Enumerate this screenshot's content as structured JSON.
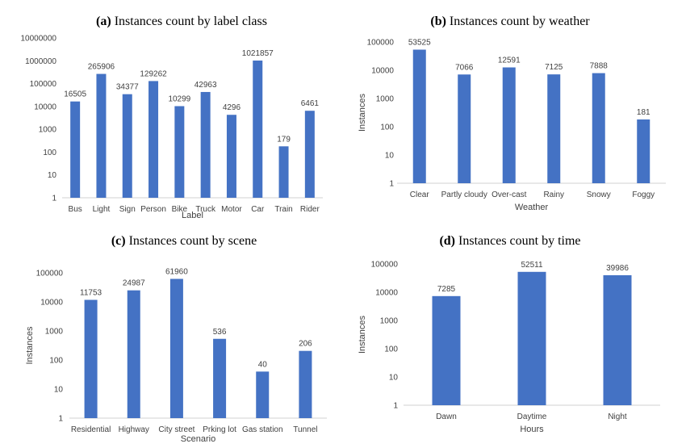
{
  "chart_data": [
    {
      "type": "bar",
      "panel": "(a)",
      "title": "Instances count by label class",
      "xlabel": "Label",
      "ylabel": "",
      "yscale": "log",
      "ylim": [
        1,
        10000000
      ],
      "yticks": [
        "1",
        "10",
        "100",
        "1000",
        "10000",
        "100000",
        "1000000",
        "10000000"
      ],
      "categories": [
        "Bus",
        "Light",
        "Sign",
        "Person",
        "Bike",
        "Truck",
        "Motor",
        "Car",
        "Train",
        "Rider"
      ],
      "values": [
        16505,
        265906,
        34377,
        129262,
        10299,
        42963,
        4296,
        1021857,
        179,
        6461
      ],
      "data_labels": [
        "16505",
        "265906",
        "34377",
        "129262",
        "10299",
        "42963",
        "4296",
        "1021857",
        "179",
        "6461"
      ]
    },
    {
      "type": "bar",
      "panel": "(b)",
      "title": "Instances count by weather",
      "xlabel": "Weather",
      "ylabel": "Instances",
      "yscale": "log",
      "ylim": [
        1,
        100000
      ],
      "yticks": [
        "1",
        "10",
        "100",
        "1000",
        "10000",
        "100000"
      ],
      "categories": [
        "Clear",
        "Partly cloudy",
        "Over-cast",
        "Rainy",
        "Snowy",
        "Foggy"
      ],
      "values": [
        53525,
        7066,
        12591,
        7125,
        7888,
        181
      ],
      "data_labels": [
        "53525",
        "7066",
        "12591",
        "7125",
        "7888",
        "181"
      ]
    },
    {
      "type": "bar",
      "panel": "(c)",
      "title": "Instances count by scene",
      "xlabel": "Scenario",
      "ylabel": "Instances",
      "yscale": "log",
      "ylim": [
        1,
        100000
      ],
      "yticks": [
        "1",
        "10",
        "100",
        "1000",
        "10000",
        "100000"
      ],
      "categories": [
        "Residential",
        "Highway",
        "City street",
        "Prking lot",
        "Gas station",
        "Tunnel"
      ],
      "values": [
        11753,
        24987,
        61960,
        536,
        40,
        206
      ],
      "data_labels": [
        "11753",
        "24987",
        "61960",
        "536",
        "40",
        "206"
      ]
    },
    {
      "type": "bar",
      "panel": "(d)",
      "title": "Instances count by time",
      "xlabel": "Hours",
      "ylabel": "Instances",
      "yscale": "log",
      "ylim": [
        1,
        100000
      ],
      "yticks": [
        "1",
        "10",
        "100",
        "1000",
        "10000",
        "100000"
      ],
      "categories": [
        "Dawn",
        "Daytime",
        "Night"
      ],
      "values": [
        7285,
        52511,
        39986
      ],
      "data_labels": [
        "7285",
        "52511",
        "39986"
      ]
    }
  ],
  "colors": {
    "bar": "#4472C4",
    "text": "#404040",
    "axis": "#d0d0d0"
  }
}
